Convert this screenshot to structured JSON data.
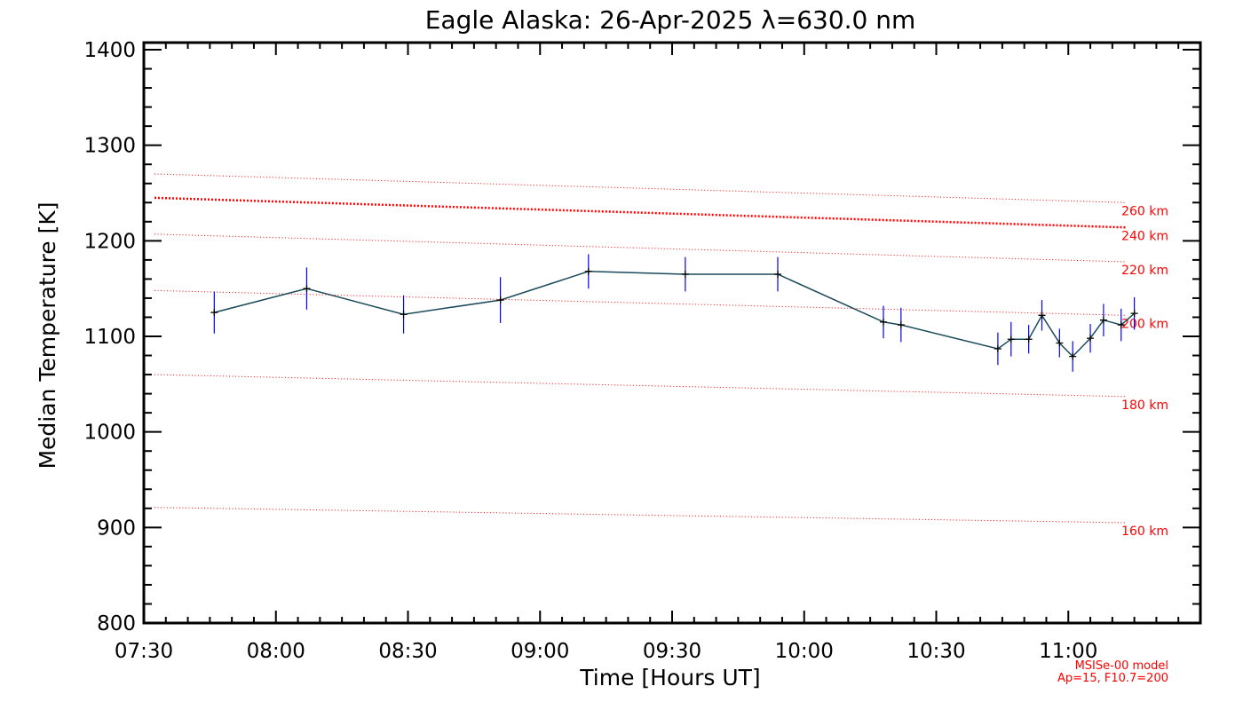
{
  "chart_data": {
    "type": "line",
    "title": "Eagle Alaska: 26-Apr-2025 λ=630.0 nm",
    "xlabel": "Time [Hours UT]",
    "ylabel": "Median Temperature [K]",
    "xlim": [
      "07:30",
      "11:30"
    ],
    "ylim": [
      800,
      1400
    ],
    "x_ticks": [
      "07:30",
      "08:00",
      "08:30",
      "09:00",
      "09:30",
      "10:00",
      "10:30",
      "11:00"
    ],
    "y_ticks": [
      "800",
      "900",
      "1000",
      "1100",
      "1200",
      "1300",
      "1400"
    ],
    "grid": false,
    "series": [
      {
        "x": [
          "07:46",
          "08:07",
          "08:29",
          "08:51",
          "09:11",
          "09:33",
          "09:54",
          "10:18",
          "10:22",
          "10:44",
          "10:47",
          "10:51",
          "10:54",
          "10:58",
          "11:01",
          "11:05",
          "11:08",
          "11:12",
          "11:15"
        ],
        "values": [
          1125,
          1150,
          1123,
          1138,
          1168,
          1165,
          1165,
          1115,
          1112,
          1087,
          1097,
          1097,
          1122,
          1093,
          1079,
          1098,
          1117,
          1112,
          1124
        ],
        "error": [
          22,
          22,
          20,
          24,
          18,
          18,
          18,
          17,
          18,
          17,
          18,
          15,
          16,
          15,
          16,
          15,
          17,
          17,
          17
        ],
        "color": "#1a4a5a",
        "error_color": "#0000ff"
      }
    ],
    "model_lines": [
      {
        "label": "260 km",
        "start": 1270,
        "end": 1240,
        "style": "dotted"
      },
      {
        "label": "240 km",
        "start": 1245,
        "end": 1214,
        "style": "dotted-heavy"
      },
      {
        "label": "220 km",
        "start": 1207,
        "end": 1178,
        "style": "dotted"
      },
      {
        "label": "200 km",
        "start": 1148,
        "end": 1122,
        "style": "dotted"
      },
      {
        "label": "180 km",
        "start": 1060,
        "end": 1037,
        "style": "dotted"
      },
      {
        "label": "160 km",
        "start": 921,
        "end": 905,
        "style": "dotted"
      }
    ],
    "model_color": "#ff0000",
    "annotations": [
      "MSISe-00 model",
      "Ap=15, F10.7=200"
    ]
  }
}
